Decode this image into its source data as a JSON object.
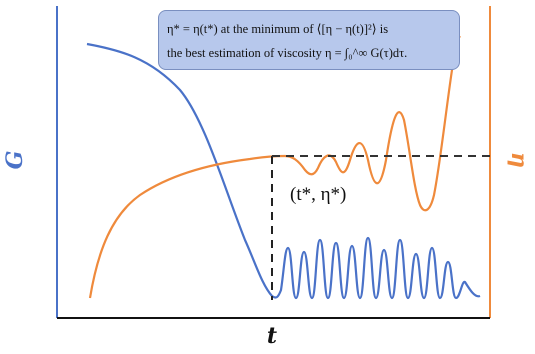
{
  "labels": {
    "x_axis": "t",
    "left_axis": "G",
    "right_axis": "η",
    "point": "(t*, η*)"
  },
  "note": {
    "line1": "η* = η(t*) at the minimum of ⟨[η − η(t)]²⟩ is",
    "line2": "the best estimation of viscosity  η = ∫₀^∞ G(τ)dτ."
  },
  "colors": {
    "G_curve": "#4a72c8",
    "eta_curve": "#ef8a3c",
    "note_bg": "#b7c8ec",
    "guide": "#333333"
  }
}
